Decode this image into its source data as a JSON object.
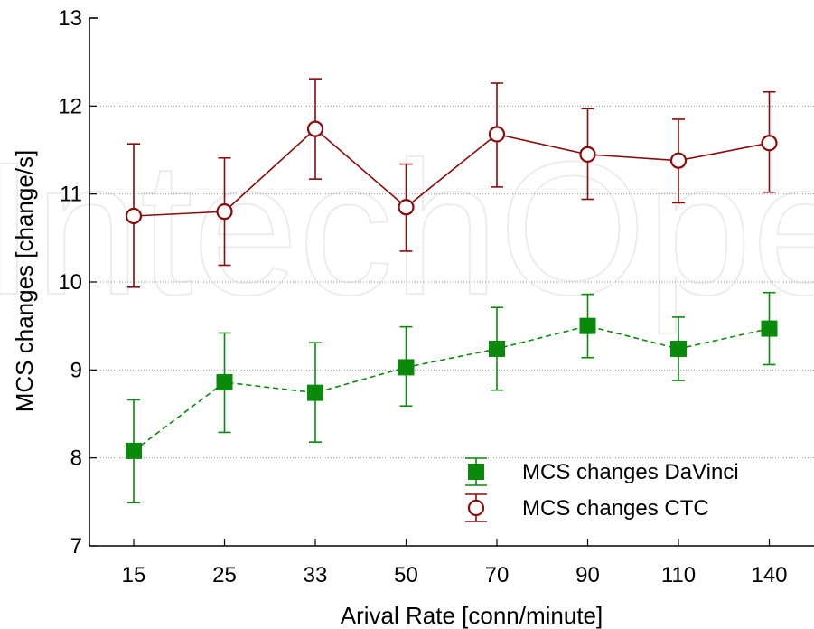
{
  "chart_data": {
    "type": "line",
    "watermark": "IntechOpen",
    "categories": [
      "15",
      "25",
      "33",
      "50",
      "70",
      "90",
      "110",
      "140"
    ],
    "xlabel": "Arival Rate [conn/minute]",
    "ylabel": "MCS changes [change/s]",
    "ylim": [
      7,
      13
    ],
    "yticks": [
      7,
      8,
      9,
      10,
      11,
      12,
      13
    ],
    "grid": "horizontal dotted",
    "legend_position": "bottom-right",
    "series": [
      {
        "name": "MCS changes DaVinci",
        "marker": "square",
        "line": "dashed",
        "color": "#0a8a0a",
        "values": [
          8.08,
          8.86,
          8.74,
          9.03,
          9.24,
          9.5,
          9.24,
          9.47
        ],
        "err_low": [
          7.49,
          8.29,
          8.18,
          8.59,
          8.77,
          9.14,
          8.88,
          9.06
        ],
        "err_high": [
          8.66,
          9.42,
          9.31,
          9.49,
          9.71,
          9.86,
          9.6,
          9.88
        ]
      },
      {
        "name": "MCS changes CTC",
        "marker": "circle",
        "line": "solid",
        "color": "#8b0a0a",
        "values": [
          10.75,
          10.8,
          11.74,
          10.85,
          11.68,
          11.45,
          11.38,
          11.58
        ],
        "err_low": [
          9.94,
          10.19,
          11.17,
          10.35,
          11.08,
          10.94,
          10.9,
          11.02
        ],
        "err_high": [
          11.57,
          11.41,
          12.31,
          11.34,
          12.26,
          11.97,
          11.85,
          12.16
        ]
      }
    ]
  }
}
